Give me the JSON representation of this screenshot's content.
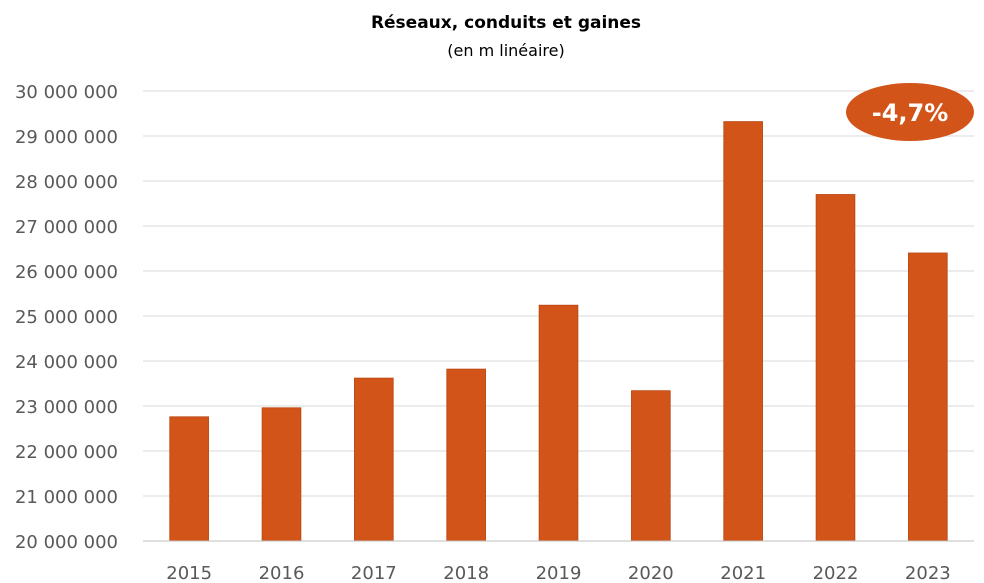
{
  "chart_data": {
    "type": "bar",
    "title": "Réseaux, conduits et gaines",
    "subtitle": "(en m linéaire)",
    "categories": [
      "2015",
      "2016",
      "2017",
      "2018",
      "2019",
      "2020",
      "2021",
      "2022",
      "2023"
    ],
    "values": [
      22760000,
      22960000,
      23620000,
      23820000,
      25240000,
      23340000,
      29320000,
      27700000,
      26400000
    ],
    "ylim": [
      20000000,
      30000000
    ],
    "yticks": [
      20000000,
      21000000,
      22000000,
      23000000,
      24000000,
      25000000,
      26000000,
      27000000,
      28000000,
      29000000,
      30000000
    ],
    "ytick_labels": [
      "20 000 000",
      "21 000 000",
      "22 000 000",
      "23 000 000",
      "24 000 000",
      "25 000 000",
      "26 000 000",
      "27 000 000",
      "28 000 000",
      "29 000 000",
      "30 000 000"
    ],
    "grid": true,
    "legend": "none",
    "bar_color": "#D35418",
    "annotation": {
      "text": "-4,7%",
      "color": "#D35418"
    }
  }
}
